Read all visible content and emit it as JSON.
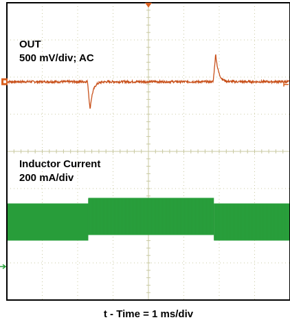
{
  "chart_data": {
    "type": "line",
    "title": "",
    "xlabel": "t - Time = 1 ms/div",
    "divisions": {
      "x": 8,
      "y": 8
    },
    "grid": true,
    "series": [
      {
        "name": "OUT",
        "scale_label": "500 mV/div; AC",
        "color": "#c8501a",
        "coupling": "AC",
        "baseline_div": 5.875,
        "events": [
          {
            "t_div": 2.3,
            "type": "undershoot",
            "peak_div": -0.75
          },
          {
            "t_div": 5.85,
            "type": "overshoot",
            "peak_div": 0.75
          }
        ]
      },
      {
        "name": "Inductor Current",
        "scale_label": "200 mA/div",
        "color": "#2aa13d",
        "segments": [
          {
            "t_start_div": 0.0,
            "t_end_div": 2.3,
            "low_div": 1.6,
            "high_div": 2.6
          },
          {
            "t_start_div": 2.3,
            "t_end_div": 5.85,
            "low_div": 1.75,
            "high_div": 2.75
          },
          {
            "t_start_div": 5.85,
            "t_end_div": 8.0,
            "low_div": 1.6,
            "high_div": 2.6
          }
        ]
      }
    ],
    "colors": {
      "grid": "#c8c8a0",
      "frame": "#000000",
      "trigger": "#d9601f"
    }
  }
}
